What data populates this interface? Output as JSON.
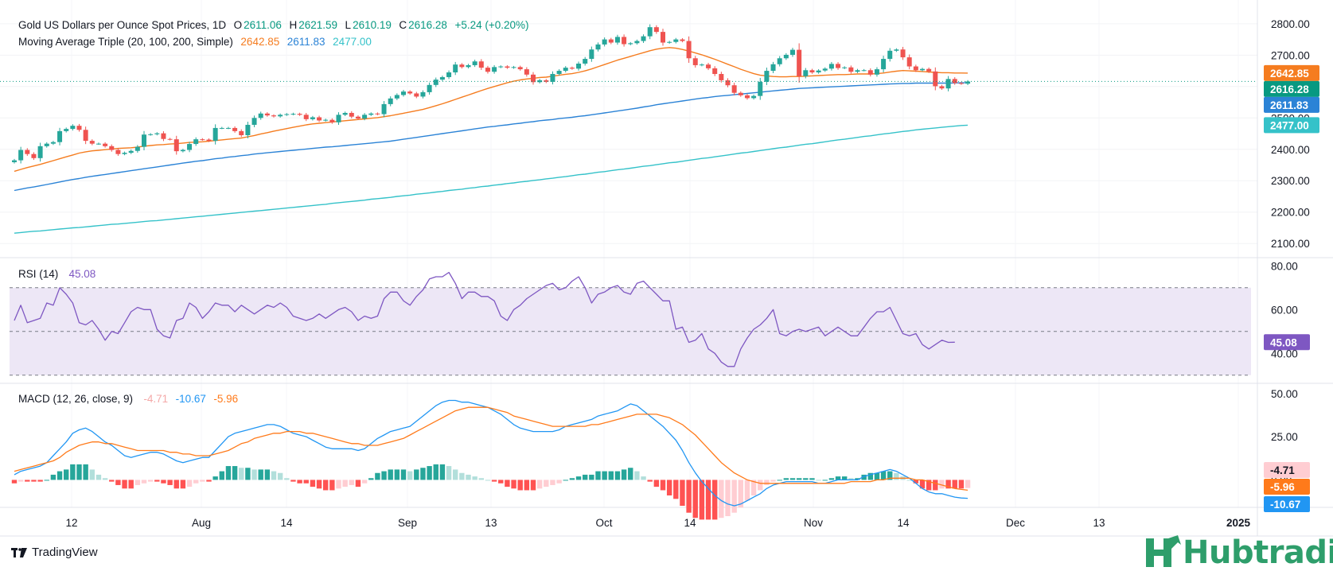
{
  "title_bar": {
    "symbol": "Gold US Dollars per Ounce Spot Prices, 1D",
    "o_label": "O",
    "o_value": "2611.06",
    "h_label": "H",
    "h_value": "2621.59",
    "l_label": "L",
    "l_value": "2610.19",
    "c_label": "C",
    "c_value": "2616.28",
    "change": "+5.24 (+0.20%)"
  },
  "ma_legend": {
    "label": "Moving Average Triple (20, 100, 200, Simple)",
    "ma20": "2642.85",
    "ma100": "2611.83",
    "ma200": "2477.00"
  },
  "rsi_legend": {
    "label": "RSI (14)",
    "value": "45.08"
  },
  "macd_legend": {
    "label": "MACD (12, 26, close, 9)",
    "hist": "-4.71",
    "macd": "-10.67",
    "signal": "-5.96"
  },
  "footer": {
    "brand": "TradingView",
    "watermark": "Hubtrading"
  },
  "colors": {
    "up": "#26a69a",
    "down": "#ef5350",
    "ma20": "#f57c1f",
    "ma100": "#2b83d6",
    "ma200": "#35c2c9",
    "rsi": "#7e57c2",
    "rsi_band": "#ede7f6",
    "macd": "#2196f3",
    "signal": "#ff7a1a",
    "hist_up_strong": "#26a69a",
    "hist_up_weak": "#b2dfdb",
    "hist_down_strong": "#ff5252",
    "hist_down_weak": "#ffcdd2",
    "hub_green": "#2e9e6b"
  },
  "chart_data": [
    {
      "type": "candlestick",
      "title": "Gold US Dollars per Ounce Spot Prices, 1D",
      "x_ticks": [
        "12",
        "Aug",
        "14",
        "Sep",
        "13",
        "Oct",
        "14",
        "Nov",
        "14",
        "Dec",
        "13",
        "2025"
      ],
      "y_ticks": [
        "2100.00",
        "2200.00",
        "2300.00",
        "2400.00",
        "2500.00",
        "2600.00",
        "2700.00",
        "2800.00"
      ],
      "ylim": [
        2060,
        2830
      ],
      "price_tags": [
        {
          "name": "MA20",
          "value": "2642.85",
          "color": "#f57c1f"
        },
        {
          "name": "Close",
          "value": "2616.28",
          "color": "#089981"
        },
        {
          "name": "MA100",
          "value": "2611.83",
          "color": "#2b83d6"
        },
        {
          "name": "MA200",
          "value": "2477.00",
          "color": "#35c2c9"
        }
      ],
      "close": [
        2365,
        2398,
        2385,
        2372,
        2410,
        2418,
        2423,
        2458,
        2465,
        2475,
        2462,
        2427,
        2418,
        2418,
        2410,
        2398,
        2385,
        2389,
        2395,
        2408,
        2447,
        2448,
        2451,
        2433,
        2432,
        2394,
        2398,
        2417,
        2432,
        2431,
        2427,
        2468,
        2468,
        2468,
        2458,
        2445,
        2478,
        2500,
        2514,
        2508,
        2505,
        2510,
        2512,
        2513,
        2510,
        2496,
        2502,
        2492,
        2494,
        2486,
        2510,
        2516,
        2504,
        2498,
        2510,
        2514,
        2512,
        2544,
        2562,
        2573,
        2584,
        2578,
        2568,
        2582,
        2605,
        2622,
        2630,
        2645,
        2670,
        2662,
        2668,
        2680,
        2660,
        2647,
        2662,
        2664,
        2660,
        2662,
        2655,
        2638,
        2614,
        2620,
        2615,
        2640,
        2650,
        2660,
        2657,
        2673,
        2688,
        2718,
        2734,
        2750,
        2740,
        2758,
        2735,
        2738,
        2745,
        2760,
        2789,
        2774,
        2740,
        2742,
        2750,
        2745,
        2690,
        2668,
        2670,
        2658,
        2640,
        2620,
        2604,
        2580,
        2572,
        2563,
        2570,
        2615,
        2650,
        2671,
        2690,
        2701,
        2717,
        2633,
        2652,
        2645,
        2651,
        2657,
        2672,
        2659,
        2661,
        2647,
        2652,
        2652,
        2638,
        2655,
        2688,
        2714,
        2718,
        2693,
        2664,
        2652,
        2656,
        2648,
        2601,
        2594,
        2624,
        2611,
        2609,
        2616
      ],
      "ma20": [
        2330,
        2336,
        2342,
        2347,
        2352,
        2358,
        2364,
        2370,
        2376,
        2382,
        2388,
        2392,
        2395,
        2397,
        2399,
        2401,
        2403,
        2404,
        2405,
        2407,
        2410,
        2412,
        2414,
        2415,
        2417,
        2418,
        2420,
        2422,
        2423,
        2424,
        2426,
        2428,
        2430,
        2432,
        2434,
        2436,
        2440,
        2444,
        2449,
        2453,
        2458,
        2462,
        2466,
        2470,
        2474,
        2478,
        2481,
        2483,
        2485,
        2487,
        2489,
        2491,
        2493,
        2495,
        2497,
        2499,
        2501,
        2504,
        2507,
        2511,
        2515,
        2519,
        2523,
        2527,
        2533,
        2539,
        2545,
        2552,
        2559,
        2566,
        2573,
        2580,
        2587,
        2594,
        2600,
        2606,
        2612,
        2617,
        2621,
        2624,
        2626,
        2629,
        2630,
        2633,
        2636,
        2639,
        2641,
        2645,
        2650,
        2656,
        2663,
        2670,
        2677,
        2684,
        2690,
        2696,
        2702,
        2708,
        2714,
        2719,
        2722,
        2724,
        2722,
        2718,
        2713,
        2707,
        2701,
        2694,
        2687,
        2679,
        2671,
        2663,
        2655,
        2648,
        2641,
        2636,
        2634,
        2632,
        2631,
        2631,
        2632,
        2632,
        2633,
        2634,
        2635,
        2636,
        2637,
        2638,
        2638,
        2639,
        2640,
        2640,
        2640,
        2641,
        2643,
        2646,
        2649,
        2651,
        2650,
        2649,
        2648,
        2646,
        2645,
        2644,
        2644,
        2643,
        2643,
        2642.85
      ],
      "ma100": [
        2269,
        2273,
        2277,
        2280,
        2284,
        2288,
        2292,
        2296,
        2300,
        2304,
        2307,
        2311,
        2314,
        2317,
        2320,
        2323,
        2326,
        2329,
        2332,
        2335,
        2338,
        2341,
        2344,
        2347,
        2350,
        2353,
        2356,
        2359,
        2362,
        2364,
        2367,
        2370,
        2372,
        2375,
        2377,
        2380,
        2382,
        2385,
        2387,
        2389,
        2391,
        2393,
        2395,
        2397,
        2399,
        2401,
        2403,
        2405,
        2407,
        2408,
        2410,
        2412,
        2414,
        2416,
        2418,
        2420,
        2422,
        2424,
        2426,
        2429,
        2432,
        2435,
        2438,
        2441,
        2444,
        2447,
        2450,
        2453,
        2456,
        2459,
        2462,
        2465,
        2468,
        2471,
        2473,
        2476,
        2478,
        2481,
        2483,
        2486,
        2488,
        2491,
        2493,
        2495,
        2498,
        2500,
        2502,
        2505,
        2507,
        2510,
        2513,
        2516,
        2519,
        2522,
        2525,
        2528,
        2531,
        2535,
        2538,
        2542,
        2545,
        2548,
        2551,
        2554,
        2557,
        2560,
        2563,
        2565,
        2568,
        2570,
        2572,
        2574,
        2576,
        2578,
        2580,
        2582,
        2584,
        2586,
        2588,
        2590,
        2592,
        2594,
        2595,
        2596,
        2597,
        2598,
        2599,
        2600,
        2601,
        2602,
        2603,
        2604,
        2605,
        2606,
        2607,
        2608,
        2609,
        2610,
        2610,
        2611,
        2611,
        2611,
        2611,
        2611,
        2611,
        2611.5,
        2611.8,
        2611.83
      ],
      "ma200": [
        2133,
        2135,
        2137,
        2139,
        2140,
        2142,
        2144,
        2146,
        2148,
        2150,
        2151,
        2153,
        2155,
        2157,
        2159,
        2161,
        2162,
        2164,
        2166,
        2168,
        2170,
        2172,
        2173,
        2175,
        2177,
        2179,
        2181,
        2183,
        2185,
        2187,
        2189,
        2191,
        2193,
        2195,
        2197,
        2199,
        2201,
        2203,
        2205,
        2207,
        2209,
        2211,
        2213,
        2215,
        2217,
        2219,
        2221,
        2223,
        2225,
        2228,
        2230,
        2232,
        2234,
        2236,
        2238,
        2241,
        2243,
        2245,
        2247,
        2250,
        2252,
        2254,
        2257,
        2259,
        2261,
        2264,
        2266,
        2269,
        2271,
        2273,
        2276,
        2278,
        2281,
        2283,
        2286,
        2288,
        2291,
        2293,
        2296,
        2298,
        2301,
        2303,
        2306,
        2308,
        2311,
        2313,
        2316,
        2319,
        2321,
        2324,
        2327,
        2329,
        2332,
        2335,
        2337,
        2340,
        2343,
        2346,
        2348,
        2351,
        2354,
        2357,
        2359,
        2362,
        2365,
        2368,
        2371,
        2373,
        2376,
        2379,
        2382,
        2385,
        2388,
        2390,
        2393,
        2396,
        2399,
        2402,
        2405,
        2407,
        2410,
        2413,
        2416,
        2418,
        2421,
        2424,
        2427,
        2430,
        2432,
        2435,
        2438,
        2441,
        2443,
        2446,
        2449,
        2451,
        2454,
        2457,
        2459,
        2462,
        2464,
        2466,
        2468,
        2470,
        2472,
        2474,
        2476,
        2477
      ]
    },
    {
      "type": "line",
      "title": "RSI (14)",
      "y_ticks": [
        "40.00",
        "60.00",
        "80.00"
      ],
      "bands": [
        30,
        50,
        70
      ],
      "ylim": [
        27,
        83
      ],
      "values": [
        55,
        62,
        54,
        55,
        56,
        63,
        62,
        70,
        67,
        63,
        54,
        53,
        55,
        51,
        46,
        50,
        49,
        54,
        59,
        61,
        60,
        60,
        51,
        48,
        47,
        55,
        56,
        63,
        61,
        56,
        59,
        63,
        62,
        62,
        59,
        62,
        60,
        58,
        60,
        62,
        61,
        63,
        61,
        57,
        56,
        55,
        56,
        58,
        56,
        58,
        60,
        61,
        59,
        55,
        57,
        56,
        57,
        65,
        68,
        68,
        64,
        62,
        66,
        69,
        74,
        75,
        75,
        77,
        72,
        65,
        68,
        68,
        66,
        66,
        64,
        57,
        55,
        60,
        62,
        65,
        67,
        69,
        71,
        72,
        69,
        70,
        73,
        75,
        70,
        63,
        67,
        68,
        70,
        71,
        68,
        67,
        72,
        73,
        70,
        67,
        64,
        64,
        51,
        52,
        45,
        46,
        49,
        42,
        40,
        36,
        34,
        34,
        42,
        47,
        51,
        53,
        56,
        60,
        49,
        48,
        50,
        51,
        50,
        51,
        52,
        48,
        50,
        52,
        50,
        48,
        48,
        52,
        56,
        59,
        59,
        61,
        55,
        49,
        48,
        49,
        44,
        42,
        44,
        46,
        45,
        45.08
      ]
    },
    {
      "type": "line",
      "title": "MACD (12, 26, close, 9)",
      "y_ticks": [
        "0.00",
        "25.00",
        "50.00"
      ],
      "ylim": [
        -15,
        55
      ],
      "macd": [
        3,
        5,
        6,
        7,
        8,
        10,
        14,
        18,
        22,
        27,
        29,
        30,
        28,
        25,
        22,
        20,
        17,
        14,
        13,
        14,
        15,
        16,
        16,
        15,
        13,
        11,
        10,
        11,
        12,
        13,
        13,
        17,
        21,
        25,
        27,
        28,
        29,
        30,
        31,
        32,
        32,
        31,
        29,
        27,
        26,
        25,
        23,
        21,
        19,
        18,
        18,
        18,
        18,
        17,
        18,
        21,
        24,
        26,
        28,
        29,
        30,
        31,
        34,
        37,
        40,
        43,
        45,
        46,
        46,
        45,
        45,
        44,
        43,
        42,
        40,
        38,
        35,
        32,
        30,
        29,
        28,
        28,
        28,
        28,
        29,
        31,
        32,
        33,
        34,
        35,
        37,
        38,
        39,
        40,
        42,
        44,
        43,
        40,
        37,
        34,
        31,
        27,
        23,
        17,
        10,
        4,
        -1,
        -5,
        -9,
        -12,
        -14,
        -15,
        -14,
        -12,
        -10,
        -8,
        -5,
        -3,
        -2,
        -1,
        -1,
        -1,
        -1,
        -1,
        -2,
        -2,
        -1,
        0,
        0,
        0,
        0,
        2,
        3,
        4,
        5,
        6,
        5,
        3,
        1,
        -2,
        -5,
        -7,
        -8,
        -8,
        -9,
        -10,
        -10.5,
        -10.67
      ],
      "signal": [
        5,
        6,
        7,
        8,
        9,
        10,
        11,
        13,
        16,
        18,
        20,
        21,
        22,
        22,
        21,
        21,
        20,
        19,
        18,
        17,
        17,
        17,
        17,
        17,
        16,
        16,
        15,
        15,
        14,
        14,
        14,
        15,
        16,
        17,
        19,
        21,
        22,
        24,
        25,
        26,
        27,
        27,
        28,
        28,
        28,
        27,
        27,
        26,
        25,
        24,
        23,
        22,
        21,
        21,
        20,
        20,
        20,
        21,
        22,
        23,
        24,
        26,
        28,
        30,
        32,
        34,
        36,
        38,
        40,
        41,
        42,
        42,
        42,
        42,
        41,
        40,
        39,
        37,
        36,
        35,
        34,
        33,
        32,
        31,
        31,
        31,
        31,
        31,
        31,
        32,
        32,
        33,
        34,
        35,
        36,
        37,
        38,
        38,
        38,
        38,
        37,
        36,
        34,
        32,
        29,
        26,
        22,
        18,
        14,
        10,
        7,
        4,
        2,
        0,
        -1,
        -2,
        -2,
        -2,
        -2,
        -2,
        -2,
        -2,
        -2,
        -2,
        -2,
        -2,
        -2,
        -2,
        -2,
        -1,
        -1,
        -1,
        -1,
        0,
        0,
        1,
        1,
        1,
        1,
        0,
        0,
        -1,
        -2,
        -3,
        -4,
        -5,
        -5.5,
        -5.96
      ]
    }
  ]
}
